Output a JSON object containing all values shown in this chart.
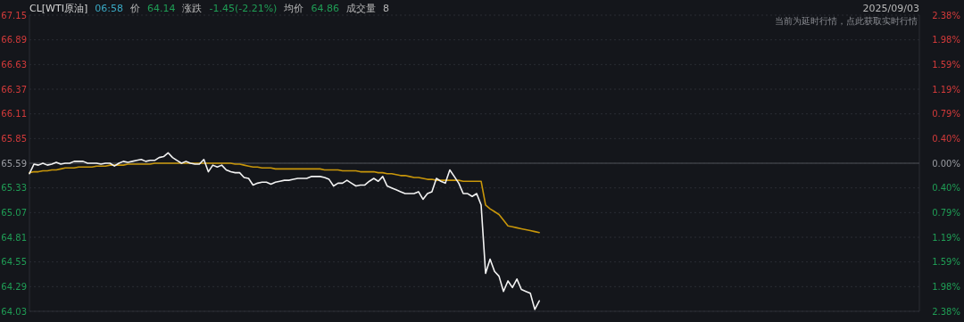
{
  "chart_data": {
    "type": "line",
    "title": "CL[WTI原油]",
    "annotations": [
      "06:58",
      "价",
      "64.14",
      "涨跌",
      "-1.45(-2.21%)",
      "均价",
      "64.86",
      "成交量",
      "8",
      "2025/09/03",
      "当前为延时行情，点此获取实时行情"
    ],
    "categories": [
      null,
      null,
      null,
      null,
      null,
      null,
      null,
      null,
      null,
      null,
      null,
      null,
      null,
      null,
      null,
      null,
      null,
      null,
      null,
      null,
      null,
      null,
      null,
      null,
      null,
      null,
      null,
      null,
      null,
      null,
      null,
      null,
      null,
      null,
      null,
      null,
      null,
      null,
      null,
      null,
      null,
      null,
      null,
      null,
      null,
      null,
      null,
      null,
      null,
      null,
      null,
      null,
      null,
      null,
      null,
      null,
      null,
      null,
      null,
      null,
      null,
      null,
      null,
      null,
      null,
      null,
      null,
      null,
      null,
      null,
      null,
      null,
      null,
      null,
      null,
      null,
      null,
      null,
      null,
      null,
      null,
      null,
      null,
      null,
      null,
      null,
      null,
      null,
      null,
      null,
      null,
      null,
      null,
      null,
      null,
      null,
      null,
      null,
      null,
      null,
      null,
      null,
      null,
      null,
      null,
      null,
      null,
      null,
      null,
      null,
      null,
      null,
      null,
      null,
      null,
      null,
      null,
      null,
      null,
      null,
      null,
      null,
      null,
      null,
      null,
      null,
      null,
      null,
      null,
      null,
      null,
      null,
      null,
      null,
      null,
      null,
      null,
      null,
      null,
      null,
      null,
      null,
      null,
      null,
      null,
      null,
      null,
      null,
      null,
      null,
      null,
      null,
      null,
      null,
      null,
      null,
      null,
      null,
      null,
      null,
      null,
      null,
      null,
      null,
      null,
      null,
      null,
      null,
      null,
      null,
      null,
      null,
      null,
      null,
      null,
      null,
      null,
      null,
      null,
      null,
      null,
      null,
      null,
      null,
      null,
      null,
      null,
      null,
      null,
      null,
      null,
      null,
      null,
      null,
      null,
      null,
      null,
      null,
      null,
      null
    ],
    "series": [
      {
        "color": "#f2f2f2",
        "values": [
          65.48,
          65.58,
          65.57,
          65.59,
          65.57,
          65.58,
          65.6,
          65.58,
          65.59,
          65.59,
          65.61,
          65.61,
          65.61,
          65.59,
          65.59,
          65.59,
          65.58,
          65.59,
          65.59,
          65.56,
          65.59,
          65.61,
          65.6,
          65.61,
          65.62,
          65.63,
          65.61,
          65.62,
          65.62,
          65.65,
          65.66,
          65.7,
          65.65,
          65.62,
          65.59,
          65.61,
          65.59,
          65.58,
          65.58,
          65.63,
          65.5,
          65.57,
          65.55,
          65.57,
          65.52,
          65.5,
          65.49,
          65.49,
          65.44,
          65.43,
          65.36,
          65.38,
          65.39,
          65.39,
          65.37,
          65.39,
          65.4,
          65.41,
          65.41,
          65.42,
          65.43,
          65.43,
          65.43,
          65.45,
          65.45,
          65.45,
          65.44,
          65.42,
          65.35,
          65.38,
          65.38,
          65.41,
          65.38,
          65.35,
          65.36,
          65.36,
          65.4,
          65.43,
          65.4,
          65.45,
          65.35,
          65.33,
          65.31,
          65.29,
          65.27,
          65.27,
          65.27,
          65.29,
          65.21,
          65.27,
          65.29,
          65.43,
          65.4,
          65.38,
          65.52,
          65.45,
          65.38,
          65.27,
          65.27,
          65.24,
          65.27,
          65.15,
          64.43,
          64.58,
          64.45,
          64.4,
          64.24,
          64.35,
          64.28,
          64.37,
          64.26,
          64.24,
          64.22,
          64.05,
          64.14,
          null,
          null,
          null,
          null,
          null,
          null,
          null,
          null,
          null,
          null,
          null,
          null,
          null,
          null,
          null,
          null,
          null,
          null,
          null,
          null,
          null,
          null,
          null,
          null,
          null,
          null,
          null,
          null,
          null,
          null,
          null,
          null,
          null,
          null,
          null,
          null,
          null,
          null,
          null,
          null,
          null,
          null,
          null,
          null,
          null,
          null,
          null,
          null,
          null,
          null,
          null,
          null,
          null,
          null,
          null,
          null,
          null,
          null,
          null,
          null,
          null,
          null,
          null,
          null,
          null,
          null,
          null,
          null,
          null,
          null,
          null,
          null,
          null,
          null,
          null,
          null,
          null,
          null,
          null,
          null,
          null,
          null,
          null,
          null,
          null
        ]
      },
      {
        "color": "#c8960a",
        "values": [
          65.49,
          65.5,
          65.5,
          65.51,
          65.51,
          65.52,
          65.52,
          65.53,
          65.54,
          65.54,
          65.54,
          65.55,
          65.55,
          65.55,
          65.55,
          65.56,
          65.56,
          65.56,
          65.57,
          65.57,
          65.57,
          65.57,
          65.58,
          65.58,
          65.58,
          65.58,
          65.58,
          65.58,
          65.59,
          65.59,
          65.59,
          65.59,
          65.59,
          65.59,
          65.59,
          65.59,
          65.59,
          65.59,
          65.59,
          65.59,
          65.59,
          65.59,
          65.59,
          65.59,
          65.59,
          65.59,
          65.58,
          65.58,
          65.57,
          65.56,
          65.55,
          65.55,
          65.54,
          65.54,
          65.54,
          65.53,
          65.53,
          65.53,
          65.53,
          65.53,
          65.53,
          65.53,
          65.53,
          65.53,
          65.53,
          65.53,
          65.52,
          65.52,
          65.52,
          65.52,
          65.51,
          65.51,
          65.51,
          65.51,
          65.5,
          65.5,
          65.5,
          65.5,
          65.49,
          65.49,
          65.48,
          65.48,
          65.47,
          65.46,
          65.46,
          65.45,
          65.44,
          65.44,
          65.43,
          65.42,
          65.42,
          65.41,
          65.41,
          65.41,
          65.41,
          65.41,
          65.41,
          65.4,
          65.4,
          65.4,
          65.4,
          65.4,
          65.15,
          65.11,
          65.08,
          65.05,
          64.99,
          64.93,
          64.92,
          64.91,
          64.9,
          64.89,
          64.88,
          64.87,
          64.86,
          null,
          null,
          null,
          null,
          null,
          null,
          null,
          null,
          null,
          null,
          null,
          null,
          null,
          null,
          null,
          null,
          null,
          null,
          null,
          null,
          null,
          null,
          null,
          null,
          null,
          null,
          null,
          null,
          null,
          null,
          null,
          null,
          null,
          null,
          null,
          null,
          null,
          null,
          null,
          null,
          null,
          null,
          null,
          null,
          null,
          null,
          null,
          null,
          null,
          null,
          null,
          null,
          null,
          null,
          null,
          null,
          null,
          null,
          null,
          null,
          null,
          null,
          null,
          null,
          null,
          null,
          null,
          null,
          null,
          null,
          null,
          null,
          null,
          null,
          null,
          null,
          null,
          null,
          null,
          null,
          null,
          null,
          null,
          null,
          null
        ]
      }
    ],
    "ylim": [
      64.03,
      67.15
    ],
    "yticks": [
      67.15,
      66.89,
      66.63,
      66.37,
      66.11,
      65.85,
      65.59,
      65.33,
      65.07,
      64.81,
      64.55,
      64.29,
      64.03
    ],
    "y2lim": [
      -2.38,
      2.38
    ],
    "y2ticks": [
      {
        "value": 2.38,
        "label": "2.38%"
      },
      {
        "value": 1.98,
        "label": "1.98%"
      },
      {
        "value": 1.59,
        "label": "1.59%"
      },
      {
        "value": 1.19,
        "label": "1.19%"
      },
      {
        "value": 0.79,
        "label": "0.79%"
      },
      {
        "value": 0.4,
        "label": "0.40%"
      },
      {
        "value": 0,
        "label": "0.00%"
      },
      {
        "value": -0.4,
        "label": "0.40%"
      },
      {
        "value": -0.79,
        "label": "0.79%"
      },
      {
        "value": -1.19,
        "label": "1.19%"
      },
      {
        "value": -1.59,
        "label": "1.59%"
      },
      {
        "value": -1.98,
        "label": "1.98%"
      },
      {
        "value": -2.38,
        "label": "2.38%"
      }
    ],
    "ref_lines": [
      {
        "axis": "y",
        "value": 65.59,
        "color": "#3c3f46"
      }
    ],
    "grid": "y",
    "line_style": "solid",
    "marker": "none"
  }
}
